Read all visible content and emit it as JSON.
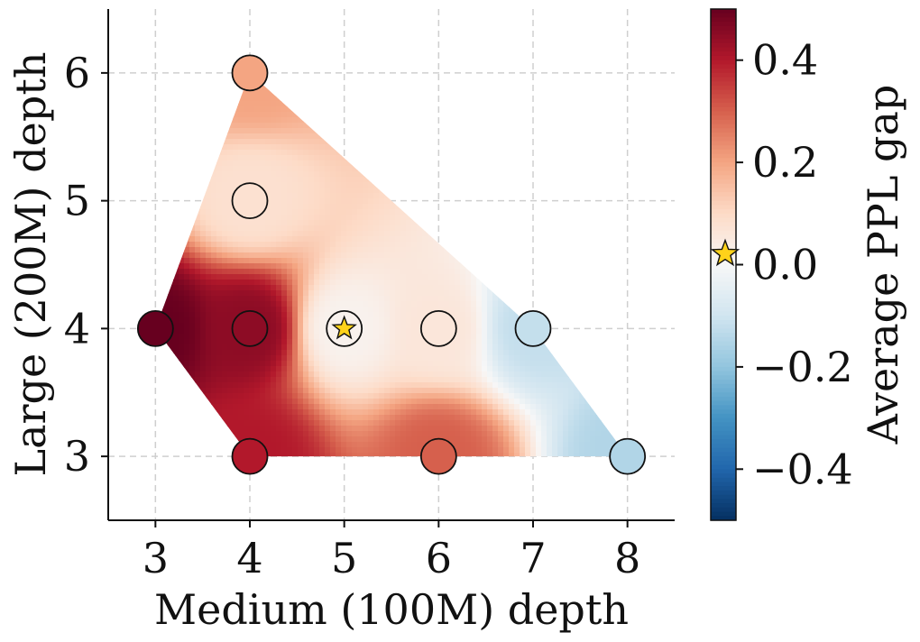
{
  "chart_data": {
    "type": "scatter",
    "title": "",
    "xlabel": "Medium (100M) depth",
    "ylabel": "Large (200M) depth",
    "xlim": [
      2.5,
      8.5
    ],
    "ylim": [
      2.5,
      6.5
    ],
    "xticks": [
      "3",
      "4",
      "5",
      "6",
      "7",
      "8"
    ],
    "yticks": [
      "3",
      "4",
      "5",
      "6"
    ],
    "grid": true,
    "colorbar": {
      "label": "Average PPL gap",
      "range": [
        -0.5,
        0.5
      ],
      "ticks": [
        "0.4",
        "0.2",
        "0.0",
        "−0.2",
        "−0.4"
      ],
      "tick_values": [
        0.4,
        0.2,
        0.0,
        -0.2,
        -0.4
      ],
      "colormap": "RdBu_r",
      "star_marker_value": 0.0
    },
    "points": [
      {
        "x": 3,
        "y": 4,
        "value": 0.5
      },
      {
        "x": 4,
        "y": 3,
        "value": 0.4
      },
      {
        "x": 4,
        "y": 4,
        "value": 0.45
      },
      {
        "x": 4,
        "y": 5,
        "value": 0.08
      },
      {
        "x": 4,
        "y": 6,
        "value": 0.2
      },
      {
        "x": 5,
        "y": 4,
        "value": 0.02,
        "marker": "star"
      },
      {
        "x": 6,
        "y": 3,
        "value": 0.3
      },
      {
        "x": 6,
        "y": 4,
        "value": 0.06
      },
      {
        "x": 7,
        "y": 4,
        "value": -0.12
      },
      {
        "x": 8,
        "y": 3,
        "value": -0.15
      }
    ],
    "star_color": "#ffd21a"
  }
}
